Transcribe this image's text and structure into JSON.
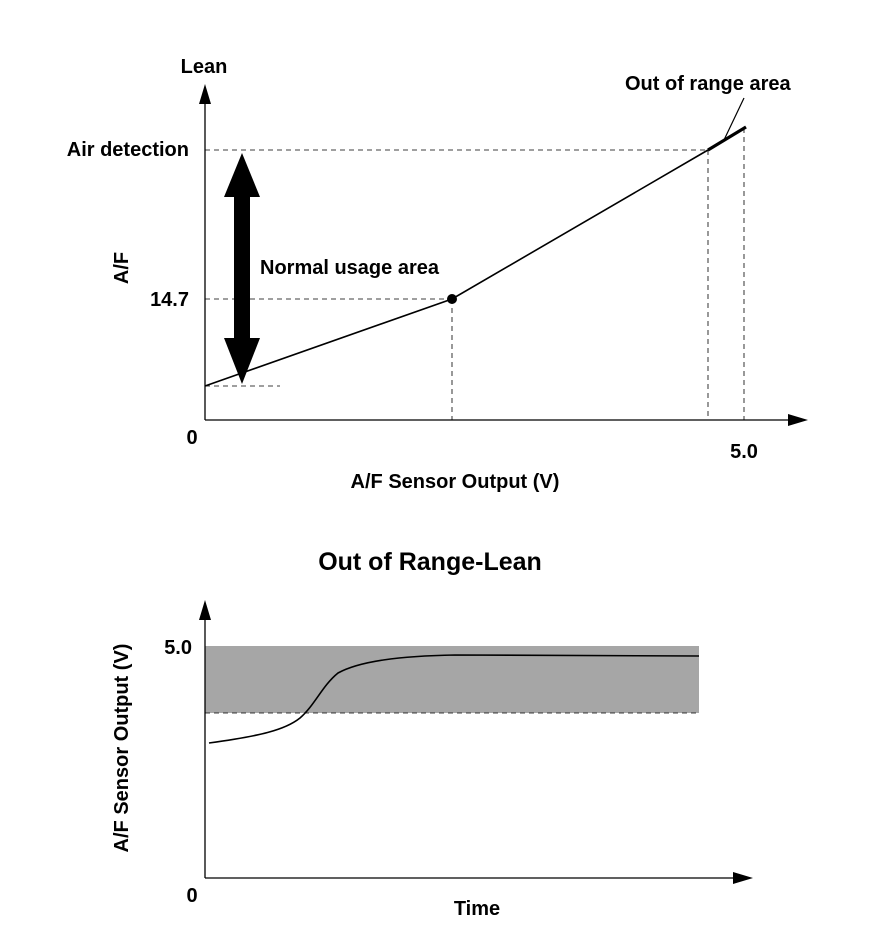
{
  "top_chart": {
    "y_direction_label": "Lean",
    "y_axis_label": "A/F",
    "x_axis_label": "A/F Sensor Output (V)",
    "origin_label": "0",
    "x_tick_label": "5.0",
    "y_tick_air": "Air detection",
    "y_tick_147": "14.7",
    "annotation_normal": "Normal usage area",
    "annotation_out_of_range": "Out of range area"
  },
  "bottom_chart": {
    "title": "Out of Range-Lean",
    "y_axis_label": "A/F Sensor Output (V)",
    "x_axis_label": "Time",
    "origin_label": "0",
    "y_tick_label": "5.0",
    "shaded_band_color": "#a6a6a6"
  }
}
